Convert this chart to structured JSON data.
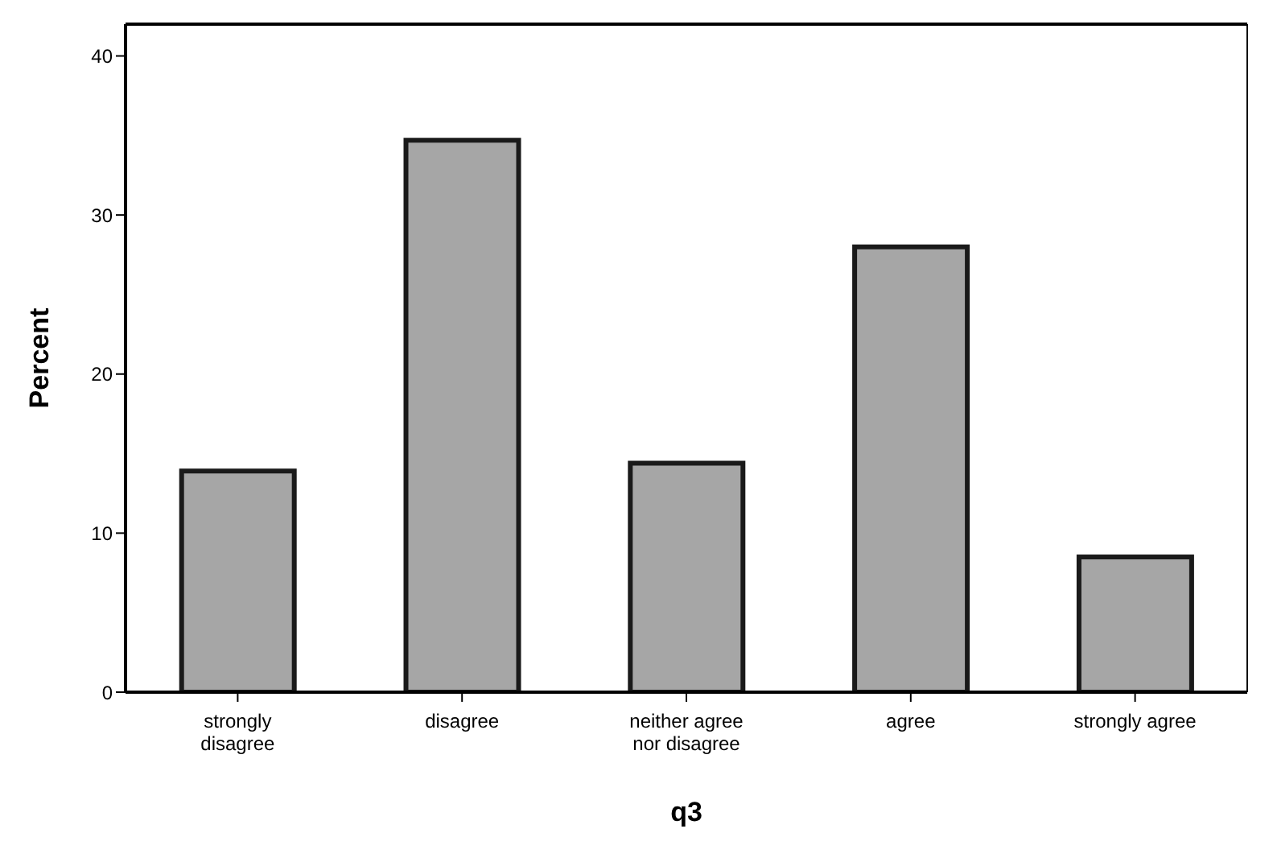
{
  "chart_data": {
    "type": "bar",
    "xlabel": "q3",
    "ylabel": "Percent",
    "categories": [
      "strongly disagree",
      "disagree",
      "neither agree nor disagree",
      "agree",
      "strongly agree"
    ],
    "values": [
      13.9,
      34.7,
      14.4,
      28.0,
      8.5
    ],
    "color": "#a6a6a6",
    "ylim": [
      0,
      42
    ],
    "yticks": [
      0,
      10,
      20,
      30,
      40
    ],
    "grid": false,
    "legend": false
  }
}
